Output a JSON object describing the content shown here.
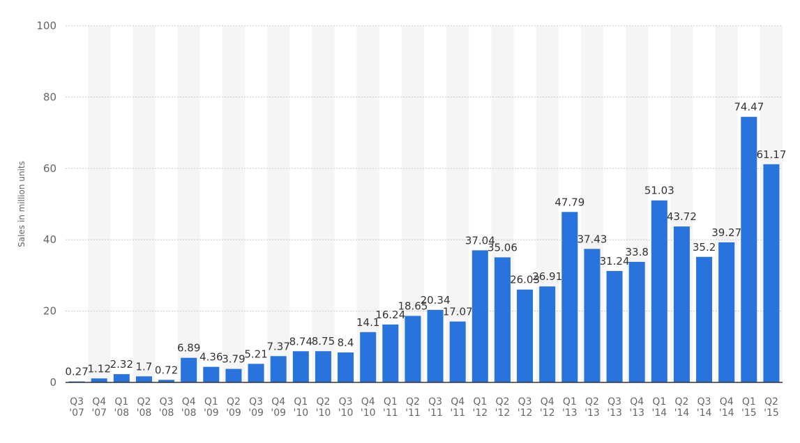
{
  "chart_data": {
    "type": "bar",
    "ylabel": "Sales in million units",
    "xlabel": "",
    "ylim": [
      0,
      100
    ],
    "yticks": [
      0,
      20,
      40,
      60,
      80,
      100
    ],
    "grid": true,
    "colors": {
      "bar": "#2873dc",
      "stripe": "#f5f5f5",
      "grid": "#c8c8c8",
      "axis": "#333333"
    },
    "categories": [
      {
        "q": "Q3",
        "y": "'07"
      },
      {
        "q": "Q4",
        "y": "'07"
      },
      {
        "q": "Q1",
        "y": "'08"
      },
      {
        "q": "Q2",
        "y": "'08"
      },
      {
        "q": "Q3",
        "y": "'08"
      },
      {
        "q": "Q4",
        "y": "'08"
      },
      {
        "q": "Q1",
        "y": "'09"
      },
      {
        "q": "Q2",
        "y": "'09"
      },
      {
        "q": "Q3",
        "y": "'09"
      },
      {
        "q": "Q4",
        "y": "'09"
      },
      {
        "q": "Q1",
        "y": "'10"
      },
      {
        "q": "Q2",
        "y": "'10"
      },
      {
        "q": "Q3",
        "y": "'10"
      },
      {
        "q": "Q4",
        "y": "'10"
      },
      {
        "q": "Q1",
        "y": "'11"
      },
      {
        "q": "Q2",
        "y": "'11"
      },
      {
        "q": "Q3",
        "y": "'11"
      },
      {
        "q": "Q4",
        "y": "'11"
      },
      {
        "q": "Q1",
        "y": "'12"
      },
      {
        "q": "Q2",
        "y": "'12"
      },
      {
        "q": "Q3",
        "y": "'12"
      },
      {
        "q": "Q4",
        "y": "'12"
      },
      {
        "q": "Q1",
        "y": "'13"
      },
      {
        "q": "Q2",
        "y": "'13"
      },
      {
        "q": "Q3",
        "y": "'13"
      },
      {
        "q": "Q4",
        "y": "'13"
      },
      {
        "q": "Q1",
        "y": "'14"
      },
      {
        "q": "Q2",
        "y": "'14"
      },
      {
        "q": "Q3",
        "y": "'14"
      },
      {
        "q": "Q4",
        "y": "'14"
      },
      {
        "q": "Q1",
        "y": "'15"
      },
      {
        "q": "Q2",
        "y": "'15"
      }
    ],
    "values": [
      0.27,
      1.12,
      2.32,
      1.7,
      0.72,
      6.89,
      4.36,
      3.79,
      5.21,
      7.37,
      8.74,
      8.75,
      8.4,
      14.1,
      16.24,
      18.65,
      20.34,
      17.07,
      37.04,
      35.06,
      26.03,
      26.91,
      47.79,
      37.43,
      31.24,
      33.8,
      51.03,
      43.72,
      35.2,
      39.27,
      74.47,
      61.17
    ],
    "value_labels": [
      "0.27",
      "1.12",
      "2.32",
      "1.7",
      "0.72",
      "6.89",
      "4.36",
      "3.79",
      "5.21",
      "7.37",
      "8.74",
      "8.75",
      "8.4",
      "14.1",
      "16.24",
      "18.65",
      "20.34",
      "17.07",
      "37.04",
      "35.06",
      "26.03",
      "26.91",
      "47.79",
      "37.43",
      "31.24",
      "33.8",
      "51.03",
      "43.72",
      "35.2",
      "39.27",
      "74.47",
      "61.17"
    ]
  }
}
